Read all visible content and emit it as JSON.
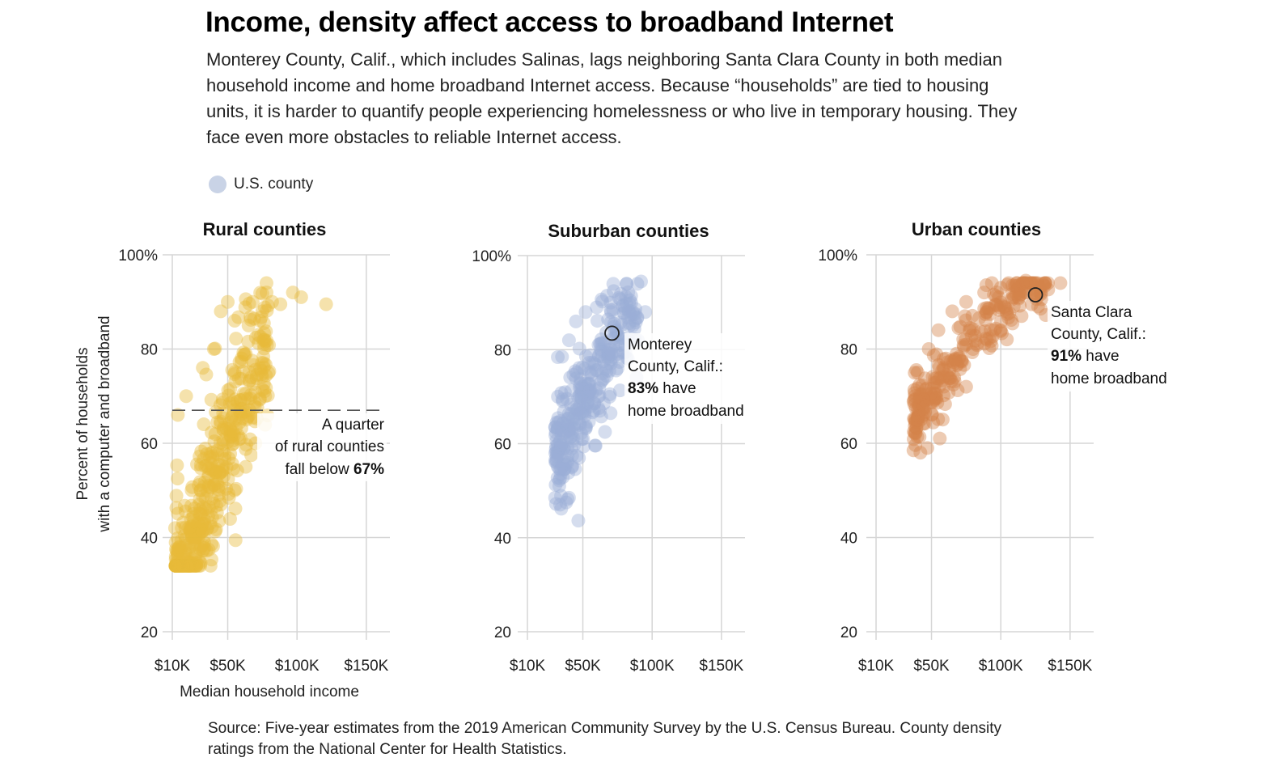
{
  "title": "Income, density affect access to broadband Internet",
  "subtitle": "Monterey County, Calif., which includes Salinas, lags neighboring Santa Clara County in both median household income and home broadband Internet access. Because “households” are tied to housing units, it is harder to quantify people experiencing homelessness or who live in temporary housing. They face even more obstacles to reliable Internet access.",
  "legend": {
    "label": "U.S. county",
    "color": "#c9d3e6"
  },
  "source": "Source: Five-year estimates from the 2019 American Community Survey by the U.S. Census Bureau. County density ratings from the National Center for Health Statistics.",
  "chart_data": [
    {
      "type": "scatter",
      "title": "Rural counties",
      "color": "#e8b93a",
      "xlabel": "Median household income",
      "ylabel": "Percent of households with a computer and broadband",
      "xlim": [
        10,
        160
      ],
      "ylim": [
        20,
        100
      ],
      "x_ticks": [
        10,
        50,
        100,
        150
      ],
      "x_tick_labels": [
        "$10K",
        "$50K",
        "$100K",
        "$150K"
      ],
      "y_ticks": [
        20,
        40,
        60,
        80,
        100
      ],
      "y_tick_labels": [
        "20",
        "40",
        "60",
        "80",
        "100%"
      ],
      "grid": true,
      "reference_line": {
        "y": 67,
        "style": "dashed"
      },
      "annotation": {
        "lines": [
          "A quarter",
          "of rural counties"
        ],
        "prefix": "fall below ",
        "bold": "67%"
      },
      "n_points": 420,
      "highlight_points": [
        {
          "x": 12,
          "y": 42
        },
        {
          "x": 15,
          "y": 38
        },
        {
          "x": 18,
          "y": 36
        },
        {
          "x": 24,
          "y": 34.5
        },
        {
          "x": 27,
          "y": 40
        },
        {
          "x": 30,
          "y": 45
        },
        {
          "x": 14,
          "y": 66
        },
        {
          "x": 20,
          "y": 70
        },
        {
          "x": 32,
          "y": 76
        },
        {
          "x": 40,
          "y": 80
        },
        {
          "x": 45,
          "y": 88
        },
        {
          "x": 50,
          "y": 90
        },
        {
          "x": 55,
          "y": 86
        },
        {
          "x": 60,
          "y": 78
        },
        {
          "x": 65,
          "y": 85
        },
        {
          "x": 68,
          "y": 90
        },
        {
          "x": 72,
          "y": 83
        },
        {
          "x": 75,
          "y": 88
        },
        {
          "x": 78,
          "y": 92
        },
        {
          "x": 82,
          "y": 90
        },
        {
          "x": 88,
          "y": 89.5
        },
        {
          "x": 97,
          "y": 92
        },
        {
          "x": 103,
          "y": 91
        },
        {
          "x": 121,
          "y": 89.5
        },
        {
          "x": 77,
          "y": 70
        },
        {
          "x": 70,
          "y": 60
        },
        {
          "x": 63,
          "y": 55
        },
        {
          "x": 55,
          "y": 50
        },
        {
          "x": 45,
          "y": 47
        }
      ]
    },
    {
      "type": "scatter",
      "title": "Suburban counties",
      "color": "#9aaed6",
      "xlim": [
        10,
        160
      ],
      "ylim": [
        20,
        100
      ],
      "x_ticks": [
        10,
        50,
        100,
        150
      ],
      "x_tick_labels": [
        "$10K",
        "$50K",
        "$100K",
        "$150K"
      ],
      "y_ticks": [
        20,
        40,
        60,
        80,
        100
      ],
      "y_tick_labels": [
        "20",
        "40",
        "60",
        "80",
        "100%"
      ],
      "grid": true,
      "annotation": {
        "lines": [
          "Monterey",
          "County, Calif.:"
        ],
        "bold": "83%",
        "suffix": " have",
        "last": "home broadband"
      },
      "highlight": {
        "x": 71,
        "y": 83.5,
        "name": "Monterey County, Calif."
      },
      "n_points": 300,
      "highlight_points": [
        {
          "x": 30,
          "y": 48.5
        },
        {
          "x": 33,
          "y": 51
        },
        {
          "x": 38,
          "y": 47.5
        },
        {
          "x": 40,
          "y": 48.5
        },
        {
          "x": 34,
          "y": 53.5
        },
        {
          "x": 42,
          "y": 55
        },
        {
          "x": 31,
          "y": 64.5
        },
        {
          "x": 32,
          "y": 70
        },
        {
          "x": 35,
          "y": 78.5
        },
        {
          "x": 40,
          "y": 82
        },
        {
          "x": 45,
          "y": 86
        },
        {
          "x": 52,
          "y": 88
        },
        {
          "x": 60,
          "y": 89
        },
        {
          "x": 70,
          "y": 90
        },
        {
          "x": 76,
          "y": 91
        },
        {
          "x": 84,
          "y": 90.5
        },
        {
          "x": 86,
          "y": 88
        },
        {
          "x": 95,
          "y": 88
        },
        {
          "x": 92,
          "y": 94.5
        },
        {
          "x": 70,
          "y": 66.5
        },
        {
          "x": 66,
          "y": 62.5
        },
        {
          "x": 58,
          "y": 67
        },
        {
          "x": 75,
          "y": 76
        }
      ]
    },
    {
      "type": "scatter",
      "title": "Urban counties",
      "color": "#d4844a",
      "xlim": [
        10,
        160
      ],
      "ylim": [
        20,
        100
      ],
      "x_ticks": [
        10,
        50,
        100,
        150
      ],
      "x_tick_labels": [
        "$10K",
        "$50K",
        "$100K",
        "$150K"
      ],
      "y_ticks": [
        20,
        40,
        60,
        80,
        100
      ],
      "y_tick_labels": [
        "20",
        "40",
        "60",
        "80",
        "100%"
      ],
      "grid": true,
      "annotation": {
        "lines": [
          "Santa Clara",
          "County, Calif.:"
        ],
        "bold": "91%",
        "suffix": " have",
        "last": "home broadband"
      },
      "highlight": {
        "x": 125,
        "y": 91.5,
        "name": "Santa Clara County, Calif."
      },
      "n_points": 260,
      "highlight_points": [
        {
          "x": 37,
          "y": 58.5
        },
        {
          "x": 42,
          "y": 58
        },
        {
          "x": 47,
          "y": 59
        },
        {
          "x": 56,
          "y": 61
        },
        {
          "x": 40,
          "y": 65
        },
        {
          "x": 38,
          "y": 70
        },
        {
          "x": 40,
          "y": 75
        },
        {
          "x": 48,
          "y": 80
        },
        {
          "x": 55,
          "y": 84
        },
        {
          "x": 65,
          "y": 88
        },
        {
          "x": 75,
          "y": 90
        },
        {
          "x": 88,
          "y": 92
        },
        {
          "x": 100,
          "y": 93
        },
        {
          "x": 110,
          "y": 93.5
        },
        {
          "x": 118,
          "y": 94.5
        },
        {
          "x": 128,
          "y": 93
        },
        {
          "x": 143,
          "y": 94
        },
        {
          "x": 115,
          "y": 87
        },
        {
          "x": 100,
          "y": 84
        },
        {
          "x": 80,
          "y": 80
        },
        {
          "x": 75,
          "y": 72
        },
        {
          "x": 70,
          "y": 78
        },
        {
          "x": 90,
          "y": 82
        }
      ]
    }
  ]
}
